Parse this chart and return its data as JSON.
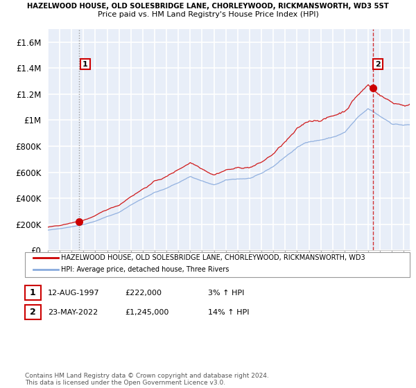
{
  "title": "HAZELWOOD HOUSE, OLD SOLESBRIDGE LANE, CHORLEYWOOD, RICKMANSWORTH, WD3 5ST",
  "subtitle": "Price paid vs. HM Land Registry's House Price Index (HPI)",
  "legend_red": "HAZELWOOD HOUSE, OLD SOLESBRIDGE LANE, CHORLEYWOOD, RICKMANSWORTH, WD3",
  "legend_blue": "HPI: Average price, detached house, Three Rivers",
  "sale1_date": "12-AUG-1997",
  "sale1_price": "£222,000",
  "sale1_hpi": "3% ↑ HPI",
  "sale1_year": 1997.62,
  "sale1_value": 222000,
  "sale2_date": "23-MAY-2022",
  "sale2_price": "£1,245,000",
  "sale2_hpi": "14% ↑ HPI",
  "sale2_year": 2022.38,
  "sale2_value": 1245000,
  "xmin": 1995.0,
  "xmax": 2025.5,
  "ymin": 0,
  "ymax": 1700000,
  "yticks": [
    0,
    200000,
    400000,
    600000,
    800000,
    1000000,
    1200000,
    1400000,
    1600000
  ],
  "ytick_labels": [
    "£0",
    "£200K",
    "£400K",
    "£600K",
    "£800K",
    "£1M",
    "£1.2M",
    "£1.4M",
    "£1.6M"
  ],
  "red_color": "#cc0000",
  "blue_color": "#88aadd",
  "background_color": "#e8eef8",
  "grid_color": "#ffffff",
  "footer": "Contains HM Land Registry data © Crown copyright and database right 2024.\nThis data is licensed under the Open Government Licence v3.0."
}
